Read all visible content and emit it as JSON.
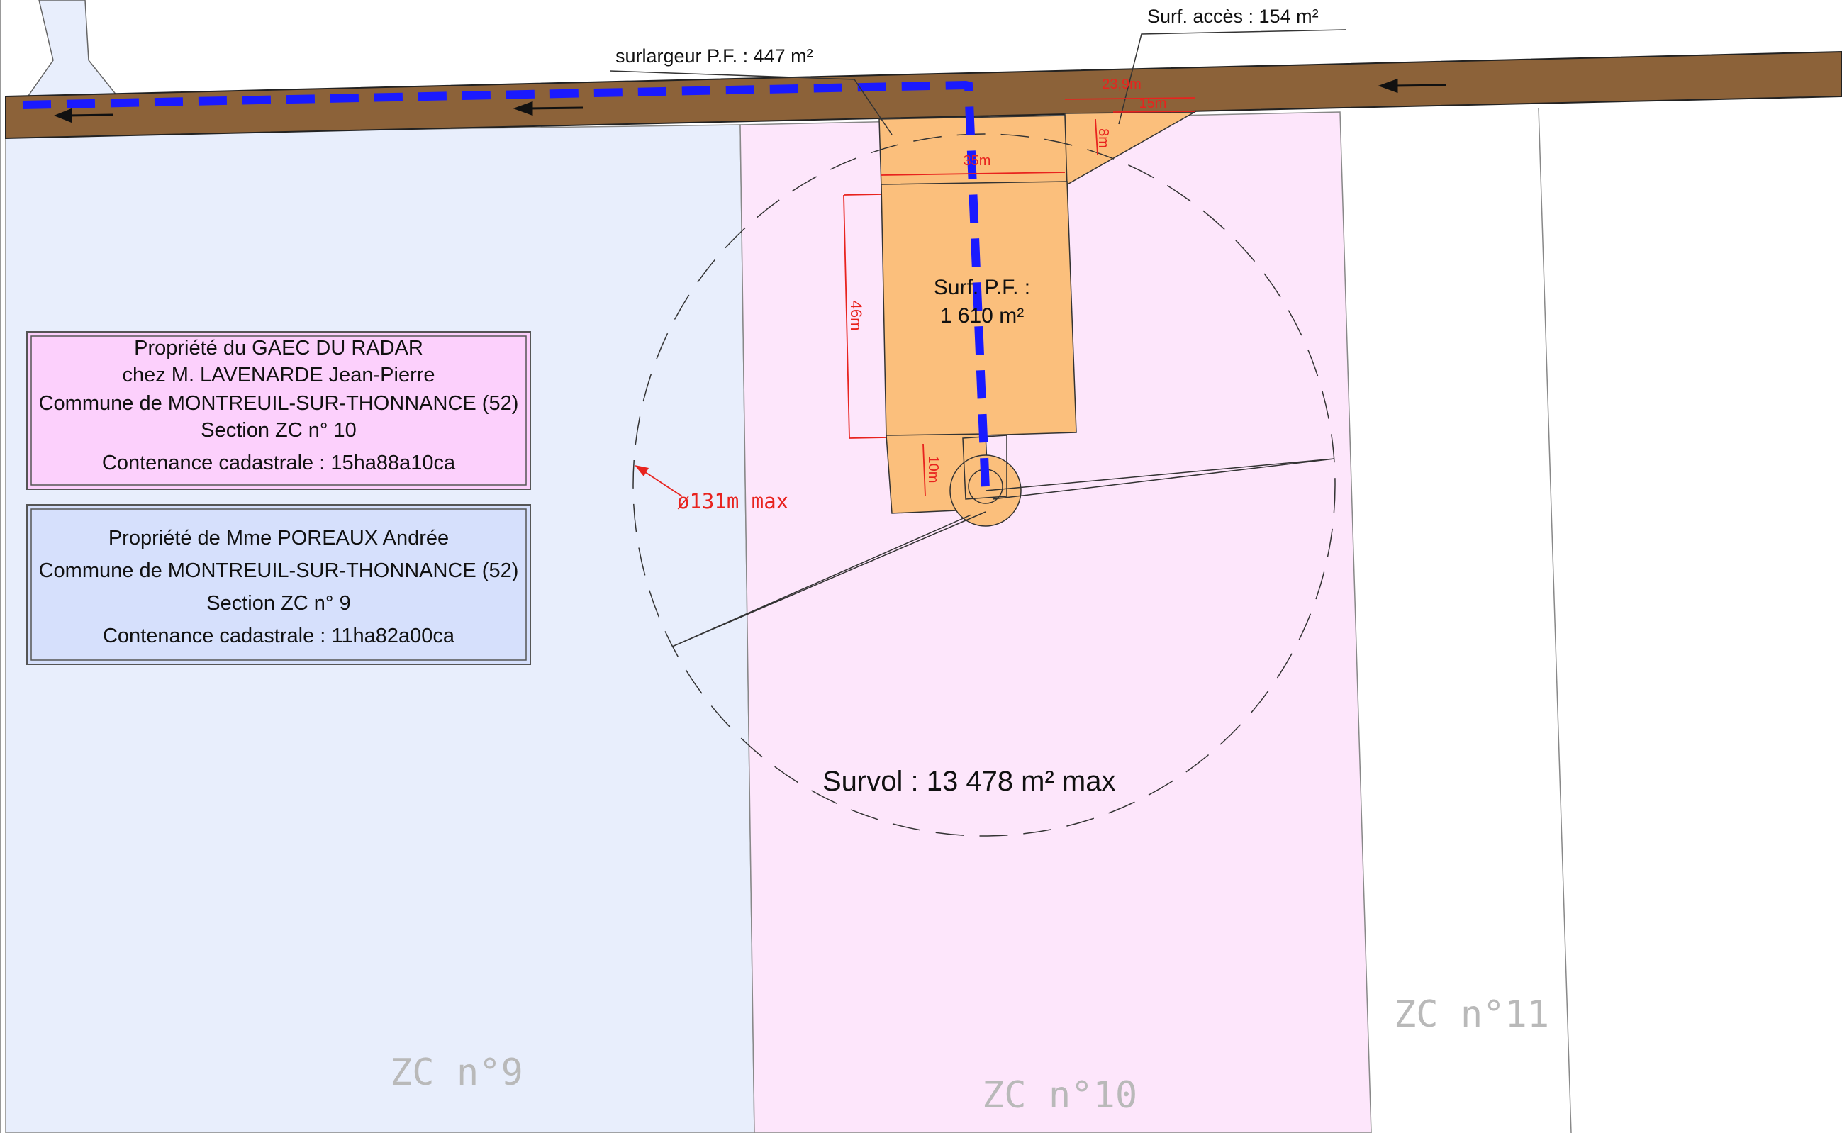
{
  "parcels": {
    "zc9": "ZC  n°9",
    "zc10": "ZC  n°10",
    "zc11": "ZC  n°11"
  },
  "owner_zc10": {
    "line1": "Propriété du GAEC DU RADAR",
    "line2": "chez M. LAVENARDE Jean-Pierre",
    "line3": "Commune de MONTREUIL-SUR-THONNANCE (52)",
    "line4": "Section ZC n° 10",
    "line5": "Contenance cadastrale : 15ha88a10ca"
  },
  "owner_zc9": {
    "line1": "Propriété de Mme POREAUX Andrée",
    "line2": "Commune de MONTREUIL-SUR-THONNANCE (52)",
    "line3": "Section ZC n° 9",
    "line4": "Contenance cadastrale : 11ha82a00ca"
  },
  "annotations": {
    "surlargeur": "surlargeur P.F. : 447 m²",
    "surf_acces": "Surf. accès : 154 m²",
    "surf_pf_line1": "Surf. P.F. :",
    "surf_pf_line2": "1 610 m²",
    "survol": "Survol : 13 478 m² max",
    "diameter": "ø131m  max"
  },
  "dimensions": {
    "width_35": "35m",
    "length_46": "46m",
    "length_10": "10m",
    "acces_23_9": "23,9m",
    "acces_15": "15m",
    "acces_8": "8m"
  },
  "colors": {
    "road": "#8c6239",
    "parcel_zc9": "#e8eefc",
    "parcel_zc10": "#fde6fb",
    "platform": "#fbbf7c",
    "cable_route": "#1a1aff",
    "dimension_red": "#e8231e"
  }
}
